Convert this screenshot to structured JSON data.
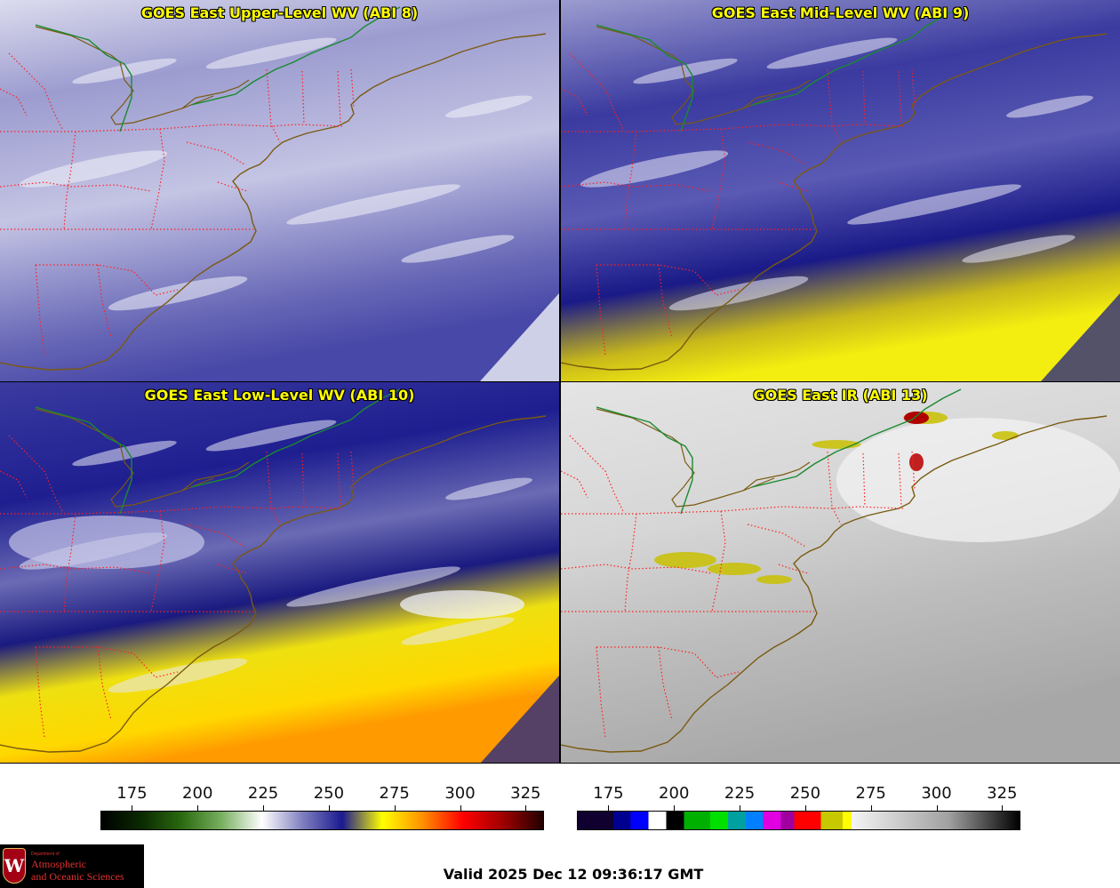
{
  "panels": [
    {
      "title": "GOES East Upper-Level WV (ABI 8)",
      "colormap": "wv",
      "moisture": 0.08
    },
    {
      "title": "GOES East Mid-Level WV (ABI 9)",
      "colormap": "wv",
      "moisture": 0.4
    },
    {
      "title": "GOES East Low-Level WV (ABI 10)",
      "colormap": "wv",
      "moisture": 0.75
    },
    {
      "title": "GOES East IR (ABI 13)",
      "colormap": "ir",
      "moisture": 0.0
    }
  ],
  "colorbars": [
    {
      "name": "wv-colorbar",
      "ticks": [
        "175",
        "200",
        "225",
        "250",
        "275",
        "300",
        "325"
      ],
      "range": [
        163,
        332
      ],
      "stops": [
        "#000000",
        "#0a2a00",
        "#2a6a10",
        "#79b060",
        "#ffffff",
        "#8080c0",
        "#1a1a90",
        "#ffff00",
        "#ff9000",
        "#ff0000",
        "#a00000",
        "#200000"
      ]
    },
    {
      "name": "ir-colorbar",
      "ticks": [
        "175",
        "200",
        "225",
        "250",
        "275",
        "300",
        "325"
      ],
      "range": [
        163,
        332
      ],
      "stops": [
        "#100030",
        "#0000ff",
        "#ffffff",
        "#000000",
        "#00c000",
        "#00a0ff",
        "#e000e0",
        "#ff0000",
        "#ffff00",
        "#f0f0f0",
        "#a0a0a0",
        "#000000"
      ]
    }
  ],
  "colors": {
    "state_border": "#ff2020",
    "coastline": "#7a5a10",
    "intl_border": "#1a8a30",
    "title_text": "#ffff00"
  },
  "logo": {
    "dept": "Department of",
    "line1": "Atmospheric",
    "line2": "and Oceanic Sciences"
  },
  "valid_time": "Valid 2025 Dec 12 09:36:17 GMT"
}
